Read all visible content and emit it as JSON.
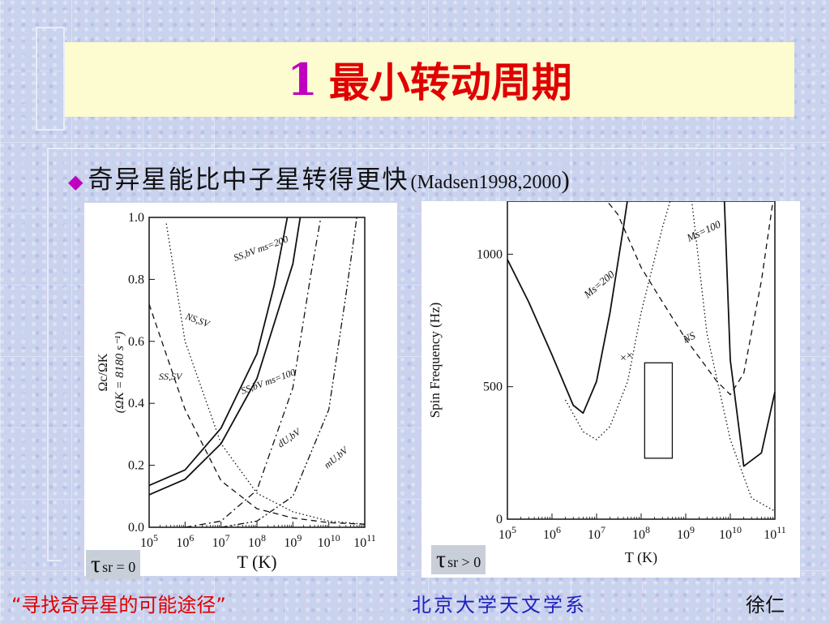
{
  "slide": {
    "title_number": "1",
    "title_text": "最小转动周期",
    "bullet": {
      "icon": "diamond-bullet-icon",
      "text": "奇异星能比中子星转得更快",
      "citation": "Madsen1998,2000",
      "open_paren": "(",
      "close_paren": ")"
    },
    "footer": {
      "left": "“寻找奇异星的可能途径”",
      "center": "北京大学天文学系",
      "right": "徐仁"
    },
    "colors": {
      "title_number": "#c000c0",
      "title_text": "#e00000",
      "footer_center": "#2020c0",
      "title_box": "#fdfbd0"
    }
  },
  "chart_data": [
    {
      "type": "line",
      "xlabel": "T (K)",
      "ylabel": "Ωc/ΩK",
      "ylabel_side_annotation": "(ΩK = 8180 s⁻¹)",
      "x_scale": "log",
      "xlim": [
        100000.0,
        100000000000.0
      ],
      "ylim": [
        0.0,
        1.0
      ],
      "x_ticks": [
        "10^5",
        "10^6",
        "10^7",
        "10^8",
        "10^9",
        "10^10",
        "10^11"
      ],
      "y_ticks": [
        "0.0",
        "0.2",
        "0.4",
        "0.6",
        "0.8",
        "1.0"
      ],
      "corner_label": {
        "symbol": "τ",
        "text": "sr = 0"
      },
      "series": [
        {
          "name": "SS,bV ms=200",
          "style": "solid",
          "x": [
            100000.0,
            1000000.0,
            10000000.0,
            100000000.0,
            300000000.0,
            700000000.0
          ],
          "y": [
            0.135,
            0.185,
            0.32,
            0.56,
            0.78,
            1.0
          ]
        },
        {
          "name": "SS,bV ms=100",
          "style": "solid",
          "x": [
            100000.0,
            1000000.0,
            10000000.0,
            100000000.0,
            1000000000.0,
            1600000000.0
          ],
          "y": [
            0.105,
            0.155,
            0.27,
            0.48,
            0.85,
            1.0
          ]
        },
        {
          "name": "NS,SV",
          "style": "dotted",
          "x": [
            300000.0,
            1000000.0,
            10000000.0,
            100000000.0,
            1000000000.0,
            10000000000.0,
            100000000000.0
          ],
          "y": [
            0.98,
            0.6,
            0.27,
            0.11,
            0.05,
            0.02,
            0.01
          ]
        },
        {
          "name": "SS,SV",
          "style": "dashed",
          "x": [
            100000.0,
            1000000.0,
            10000000.0,
            100000000.0,
            1000000000.0,
            10000000000.0,
            100000000000.0
          ],
          "y": [
            0.72,
            0.38,
            0.15,
            0.06,
            0.03,
            0.015,
            0.01
          ]
        },
        {
          "name": "dU,bV",
          "style": "dashdot",
          "x": [
            1000000.0,
            10000000.0,
            100000000.0,
            1000000000.0,
            3000000000.0,
            6000000000.0
          ],
          "y": [
            0.0,
            0.02,
            0.12,
            0.45,
            0.8,
            1.0
          ]
        },
        {
          "name": "mU,bV",
          "style": "dashdotdot",
          "x": [
            10000000.0,
            100000000.0,
            1000000000.0,
            10000000000.0,
            30000000000.0,
            60000000000.0
          ],
          "y": [
            0.0,
            0.02,
            0.1,
            0.38,
            0.75,
            1.0
          ]
        }
      ]
    },
    {
      "type": "line",
      "xlabel": "T (K)",
      "ylabel": "Spin Frequency (Hz)",
      "x_scale": "log",
      "xlim": [
        100000.0,
        100000000000.0
      ],
      "ylim": [
        0,
        1200
      ],
      "x_ticks": [
        "10^5",
        "10^6",
        "10^7",
        "10^8",
        "10^9",
        "10^10",
        "10^11"
      ],
      "y_ticks": [
        "0",
        "500",
        "1000"
      ],
      "corner_label": {
        "symbol": "τ",
        "text": "sr > 0"
      },
      "rectangle": {
        "x_range": [
          120000000.0,
          500000000.0
        ],
        "y_range": [
          230,
          590
        ]
      },
      "crosses": [
        {
          "x": 40000000.0,
          "y": 610
        },
        {
          "x": 55000000.0,
          "y": 620
        }
      ],
      "series": [
        {
          "name": "ms=200",
          "style": "solid",
          "x": [
            100000.0,
            300000.0,
            1000000.0,
            3000000.0,
            5000000.0,
            10000000.0,
            20000000.0,
            40000000.0,
            60000000.0
          ],
          "y": [
            980,
            820,
            620,
            430,
            400,
            520,
            780,
            1100,
            1300
          ]
        },
        {
          "name": "ms=100",
          "style": "solid",
          "x": [
            7000000000.0,
            10000000000.0,
            20000000000.0,
            50000000000.0,
            100000000000.0
          ],
          "y": [
            1300,
            600,
            200,
            250,
            480
          ]
        },
        {
          "name": "NS",
          "style": "dashed",
          "x": [
            10000000.0,
            30000000.0,
            100000000.0,
            300000000.0,
            1000000000.0,
            5000000000.0,
            10000000000.0,
            20000000000.0,
            50000000000.0,
            100000000000.0
          ],
          "y": [
            1250,
            1150,
            950,
            820,
            680,
            520,
            470,
            550,
            900,
            1250
          ]
        },
        {
          "name": "",
          "style": "dotted",
          "x": [
            2000000.0,
            5000000.0,
            10000000.0,
            20000000.0,
            50000000.0,
            100000000.0,
            300000000.0,
            1000000000.0,
            3000000000.0,
            10000000000.0,
            30000000000.0,
            100000000000.0
          ],
          "y": [
            450,
            330,
            300,
            350,
            520,
            780,
            1100,
            1400,
            700,
            300,
            80,
            30
          ]
        }
      ],
      "annotations": [
        "Ms=200",
        "Ms=100",
        "NS",
        "× ×"
      ]
    }
  ]
}
